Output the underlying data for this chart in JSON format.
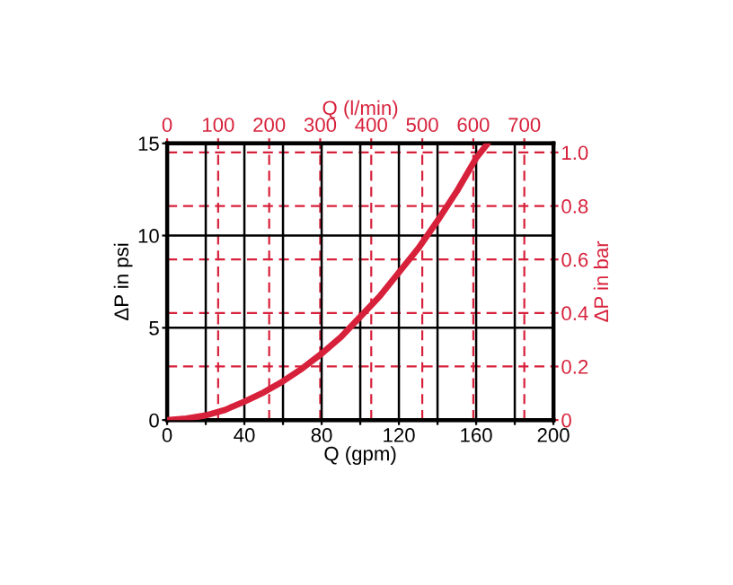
{
  "chart_data": {
    "type": "line",
    "xlabel": "Q (gpm)",
    "ylabel": "ΔP in psi",
    "x2label": "Q (l/min)",
    "y2label": "ΔP in bar",
    "x": [
      0,
      10,
      20,
      30,
      40,
      50,
      60,
      70,
      80,
      90,
      100,
      110,
      120,
      130,
      140,
      150,
      160,
      166
    ],
    "series": [
      {
        "color": "#d7213b",
        "values": [
          0,
          0.08,
          0.25,
          0.55,
          1.0,
          1.5,
          2.1,
          2.8,
          3.6,
          4.5,
          5.6,
          6.7,
          8.0,
          9.3,
          10.8,
          12.4,
          14.2,
          15
        ]
      }
    ],
    "xlim": [
      0,
      200
    ],
    "ylim": [
      0,
      15
    ],
    "x2lim": [
      0,
      757
    ],
    "y2lim": [
      0,
      1.034
    ],
    "xticks": [
      0,
      {
        "value": 20,
        "label": null
      },
      40,
      {
        "value": 60,
        "label": null
      },
      80,
      {
        "value": 100,
        "label": null
      },
      120,
      {
        "value": 140,
        "label": null
      },
      160,
      {
        "value": 180,
        "label": null
      },
      200
    ],
    "yticks": [
      0,
      5,
      10,
      15
    ],
    "x2ticks": [
      0,
      100,
      200,
      300,
      400,
      500,
      600,
      700
    ],
    "y2ticks": [
      0,
      {
        "value": 0.2,
        "label": "0.2"
      },
      {
        "value": 0.4,
        "label": "0.4"
      },
      {
        "value": 0.6,
        "label": "0.6"
      },
      {
        "value": 0.8,
        "label": "0.8"
      },
      {
        "value": 1.0,
        "label": "1.0"
      }
    ],
    "grid": true,
    "line_style": "solid",
    "marker": "none"
  }
}
